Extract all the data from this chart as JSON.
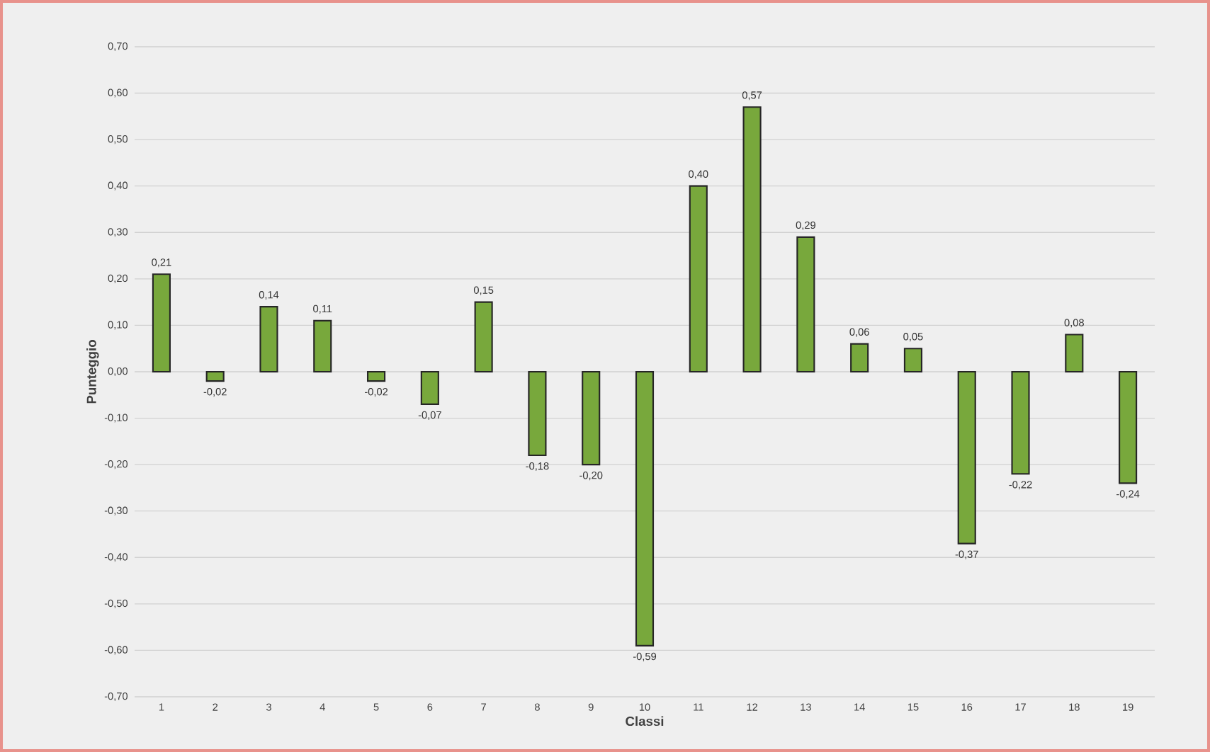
{
  "chart_data": {
    "type": "bar",
    "xlabel": "Classi",
    "ylabel": "Punteggio",
    "categories": [
      "1",
      "2",
      "3",
      "4",
      "5",
      "6",
      "7",
      "8",
      "9",
      "10",
      "11",
      "12",
      "13",
      "14",
      "15",
      "16",
      "17",
      "18",
      "19"
    ],
    "values": [
      0.21,
      -0.02,
      0.14,
      0.11,
      -0.02,
      -0.07,
      0.15,
      -0.18,
      -0.2,
      -0.59,
      0.4,
      0.57,
      0.29,
      0.06,
      0.05,
      -0.37,
      -0.22,
      0.08,
      -0.24
    ],
    "value_labels": [
      "0,21",
      "-0,02",
      "0,14",
      "0,11",
      "-0,02",
      "-0,07",
      "0,15",
      "-0,18",
      "-0,20",
      "-0,59",
      "0,40",
      "0,57",
      "0,29",
      "0,06",
      "0,05",
      "-0,37",
      "-0,22",
      "0,08",
      "-0,24"
    ],
    "color": "#78a83c",
    "ylim": [
      -0.7,
      0.7
    ],
    "yticks": [
      {
        "value": -0.7,
        "label": "-0,70"
      },
      {
        "value": -0.6,
        "label": "-0,60"
      },
      {
        "value": -0.5,
        "label": "-0,50"
      },
      {
        "value": -0.4,
        "label": "-0,40"
      },
      {
        "value": -0.3,
        "label": "-0,30"
      },
      {
        "value": -0.2,
        "label": "-0,20"
      },
      {
        "value": -0.1,
        "label": "-0,10"
      },
      {
        "value": 0,
        "label": "0,00"
      },
      {
        "value": 0.1,
        "label": "0,10"
      },
      {
        "value": 0.2,
        "label": "0,20"
      },
      {
        "value": 0.3,
        "label": "0,30"
      },
      {
        "value": 0.4,
        "label": "0,40"
      },
      {
        "value": 0.5,
        "label": "0,50"
      },
      {
        "value": 0.6,
        "label": "0,60"
      },
      {
        "value": 0.7,
        "label": "0,70"
      }
    ],
    "grid": "y"
  }
}
